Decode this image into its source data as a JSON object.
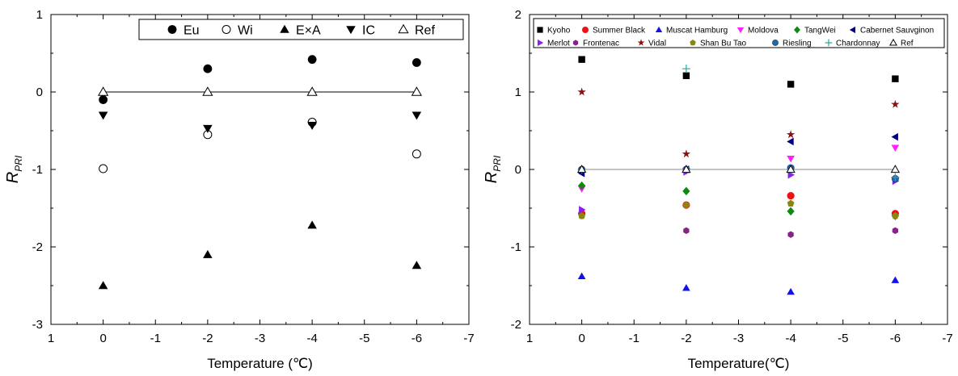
{
  "chart_data": [
    {
      "type": "scatter",
      "xlabel": "Temperature (℃)",
      "ylabel_main": "R",
      "ylabel_sub": "PRI",
      "xlim": [
        1,
        -7
      ],
      "ylim": [
        -3,
        1
      ],
      "xticks": [
        1,
        0,
        -1,
        -2,
        -3,
        -4,
        -5,
        -6,
        -7
      ],
      "yticks": [
        -3,
        -2,
        -1,
        0,
        1
      ],
      "legend_position": "top-right",
      "legend_columns": 5,
      "series": [
        {
          "name": "Eu",
          "marker": "circle-filled",
          "color": "#000000",
          "x": [
            0,
            -2,
            -4,
            -6
          ],
          "y": [
            -0.1,
            0.3,
            0.42,
            0.38
          ]
        },
        {
          "name": "Wi",
          "marker": "circle-open",
          "color": "#000000",
          "x": [
            0,
            -2,
            -4,
            -6
          ],
          "y": [
            -0.99,
            -0.55,
            -0.39,
            -0.8
          ]
        },
        {
          "name": "E×A",
          "marker": "triangle-up",
          "color": "#000000",
          "x": [
            0,
            -2,
            -4,
            -6
          ],
          "y": [
            -2.5,
            -2.1,
            -1.72,
            -2.24
          ]
        },
        {
          "name": "IC",
          "marker": "triangle-down",
          "color": "#000000",
          "x": [
            0,
            -2,
            -4,
            -6
          ],
          "y": [
            -0.3,
            -0.47,
            -0.43,
            -0.3
          ]
        },
        {
          "name": "Ref",
          "marker": "triangle-open",
          "color": "#000000",
          "x": [
            0,
            -2,
            -4,
            -6
          ],
          "y": [
            0,
            0,
            0,
            0
          ],
          "line": true
        }
      ]
    },
    {
      "type": "scatter",
      "xlabel": "Temperature(℃)",
      "ylabel_main": "R",
      "ylabel_sub": "PRI",
      "xlim": [
        1,
        -7
      ],
      "ylim": [
        -2,
        2
      ],
      "xticks": [
        1,
        0,
        -1,
        -2,
        -3,
        -4,
        -5,
        -6,
        -7
      ],
      "yticks": [
        -2,
        -1,
        0,
        1,
        2
      ],
      "legend_position": "top",
      "legend_columns": 6,
      "series": [
        {
          "name": "Kyoho",
          "marker": "square",
          "color": "#000000",
          "x": [
            0,
            -2,
            -4,
            -6
          ],
          "y": [
            1.42,
            1.21,
            1.1,
            1.17
          ]
        },
        {
          "name": "Summer Black",
          "marker": "circle-filled",
          "color": "#ee1111",
          "x": [
            0,
            -2,
            -4,
            -6
          ],
          "y": [
            -0.57,
            -0.46,
            -0.34,
            -0.57
          ]
        },
        {
          "name": "Muscat Hamburg",
          "marker": "triangle-up",
          "color": "#1111ee",
          "x": [
            0,
            -2,
            -4,
            -6
          ],
          "y": [
            -1.38,
            -1.53,
            -1.58,
            -1.43
          ]
        },
        {
          "name": "Moldova",
          "marker": "triangle-down",
          "color": "#ff22ff",
          "x": [
            0,
            -2,
            -4,
            -6
          ],
          "y": [
            -0.25,
            -0.02,
            0.14,
            0.28
          ]
        },
        {
          "name": "TangWei",
          "marker": "diamond",
          "color": "#118811",
          "x": [
            0,
            -2,
            -4,
            -6
          ],
          "y": [
            -0.21,
            -0.28,
            -0.54,
            -0.6
          ]
        },
        {
          "name": "Cabernet Sauvginon",
          "marker": "triangle-left",
          "color": "#000088",
          "x": [
            0,
            -2,
            -4,
            -6
          ],
          "y": [
            -0.05,
            0.0,
            0.36,
            0.42
          ]
        },
        {
          "name": "Merlot",
          "marker": "triangle-right",
          "color": "#8822ee",
          "x": [
            0,
            -2,
            -4,
            -6
          ],
          "y": [
            -0.52,
            -0.03,
            -0.07,
            -0.15
          ]
        },
        {
          "name": "Frontenac",
          "marker": "hexagon",
          "color": "#882288",
          "x": [
            0,
            -2,
            -4,
            -6
          ],
          "y": [
            -0.6,
            -0.79,
            -0.84,
            -0.79
          ]
        },
        {
          "name": "Vidal",
          "marker": "star",
          "color": "#881111",
          "x": [
            0,
            -2,
            -4,
            -6
          ],
          "y": [
            1.0,
            0.2,
            0.45,
            0.84
          ]
        },
        {
          "name": "Shan Bu Tao",
          "marker": "pentagon",
          "color": "#888811",
          "x": [
            0,
            -2,
            -4,
            -6
          ],
          "y": [
            -0.6,
            -0.46,
            -0.44,
            -0.6
          ]
        },
        {
          "name": "Riesling",
          "marker": "sphere",
          "color": "#2266aa",
          "x": [
            0,
            -2,
            -4,
            -6
          ],
          "y": [
            0.0,
            0.0,
            0.02,
            -0.12
          ]
        },
        {
          "name": "Chardonnay",
          "marker": "plus",
          "color": "#22aa99",
          "x": [
            0,
            -2,
            -4,
            -6
          ],
          "y": [
            0.0,
            1.3,
            0.0,
            -0.1
          ]
        },
        {
          "name": "Ref",
          "marker": "triangle-open",
          "color": "#000000",
          "x": [
            0,
            -2,
            -4,
            -6
          ],
          "y": [
            0,
            0,
            0,
            0
          ],
          "line": true
        }
      ]
    }
  ]
}
